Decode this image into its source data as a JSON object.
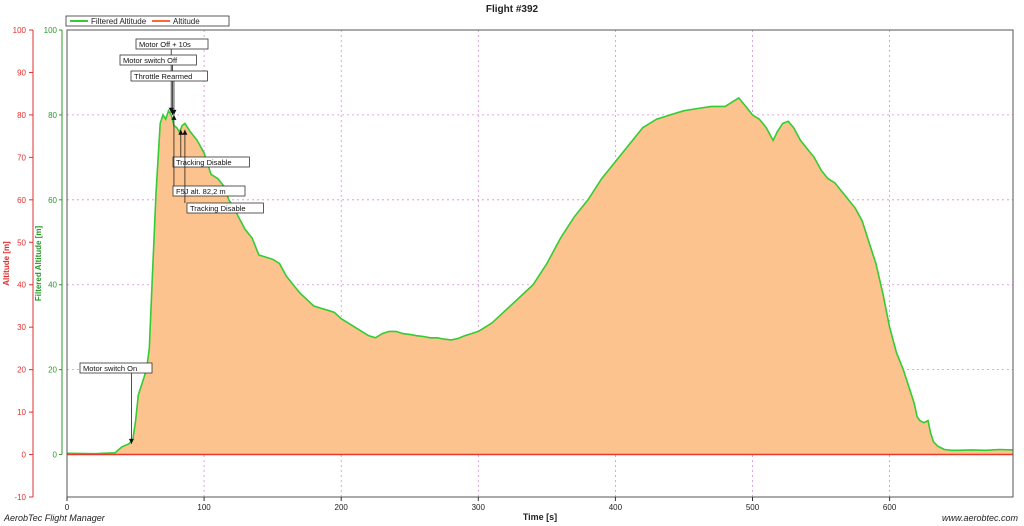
{
  "footer": {
    "left": "AerobTec Flight Manager",
    "right": "www.aerobtec.com"
  },
  "chart_data": {
    "type": "area",
    "title": "Flight #392",
    "xlabel": "Time [s]",
    "ylabel_left": "Altitude [m]",
    "ylabel_right": "Filtered Altitude [m]",
    "xlim": [
      0,
      690
    ],
    "ylim": [
      -10,
      100
    ],
    "xticks": [
      0,
      100,
      200,
      300,
      400,
      500,
      600
    ],
    "yticks_outer": [
      -10,
      0,
      10,
      20,
      30,
      40,
      50,
      60,
      70,
      80,
      90,
      100
    ],
    "yticks_inner": [
      0,
      20,
      40,
      60,
      80,
      100
    ],
    "grid": true,
    "legend_position": "top-left",
    "colors": {
      "filtered": "#33cc33",
      "altitude": "#ff6633",
      "fill": "#fcc38e",
      "outer_axis": "#e03030",
      "inner_axis": "#2a9a2a",
      "grid": "#d58fd5"
    },
    "series": [
      {
        "name": "Filtered Altitude",
        "x": [
          0,
          20,
          35,
          40,
          45,
          48,
          50,
          52,
          55,
          58,
          60,
          62,
          65,
          68,
          70,
          72,
          74,
          76,
          78,
          80,
          82,
          84,
          86,
          88,
          90,
          95,
          100,
          105,
          110,
          115,
          118,
          122,
          125,
          130,
          135,
          140,
          145,
          150,
          155,
          160,
          165,
          170,
          175,
          180,
          185,
          190,
          195,
          200,
          205,
          210,
          215,
          220,
          225,
          230,
          235,
          240,
          245,
          250,
          255,
          260,
          265,
          270,
          275,
          280,
          285,
          290,
          295,
          300,
          305,
          310,
          320,
          330,
          340,
          350,
          360,
          370,
          380,
          390,
          400,
          410,
          420,
          430,
          440,
          450,
          460,
          470,
          480,
          485,
          490,
          495,
          500,
          505,
          510,
          515,
          518,
          522,
          526,
          530,
          535,
          540,
          545,
          550,
          555,
          560,
          565,
          570,
          575,
          580,
          585,
          590,
          595,
          600,
          605,
          610,
          615,
          618,
          620,
          622,
          625,
          628,
          630,
          632,
          635,
          640,
          645,
          650,
          660,
          670,
          680,
          690
        ],
        "y": [
          0.3,
          0.2,
          0.4,
          1.8,
          2.5,
          3.5,
          8,
          14,
          17,
          20,
          25,
          40,
          62,
          78,
          80,
          79,
          81,
          80,
          77.5,
          77,
          76,
          77.5,
          78,
          77,
          76,
          74,
          71,
          66,
          65,
          63,
          60,
          58,
          56,
          53,
          51,
          47,
          46.5,
          46,
          45,
          42,
          40,
          38,
          36.5,
          35,
          34.5,
          34,
          33.5,
          32,
          31,
          30,
          29,
          28,
          27.5,
          28.5,
          29,
          29,
          28.5,
          28.3,
          28,
          27.8,
          27.5,
          27.5,
          27.2,
          27,
          27.3,
          28,
          28.5,
          29,
          30,
          31,
          34,
          37,
          40,
          45,
          51,
          56,
          60,
          65,
          69,
          73,
          77,
          79,
          80,
          81,
          81.5,
          82,
          82,
          83,
          84,
          82,
          80,
          79,
          77,
          74,
          76,
          78,
          78.5,
          77,
          74,
          72,
          70,
          67,
          65,
          64,
          62,
          60,
          58,
          55,
          50,
          45,
          38,
          30,
          24,
          20,
          15,
          12,
          9,
          8,
          7.5,
          8,
          5,
          3,
          2,
          1.2,
          1.0,
          1.0,
          1.1,
          1.0,
          1.2,
          1.1
        ]
      },
      {
        "name": "Altitude",
        "x": [
          0,
          690
        ],
        "y": [
          0,
          0
        ]
      }
    ],
    "annotations": [
      {
        "text": "Motor switch On",
        "x": 47,
        "y": 2.5
      },
      {
        "text": "Motor Off + 10s",
        "x": 76,
        "y": 80.5
      },
      {
        "text": "Motor switch Off",
        "x": 77,
        "y": 80
      },
      {
        "text": "Throttle Rearmed",
        "x": 78,
        "y": 80
      },
      {
        "text": "Tracking Disable",
        "x": 83,
        "y": 76.5
      },
      {
        "text": "F5J alt. 82,2 m",
        "x": 78,
        "y": 80
      },
      {
        "text": "Tracking Disable",
        "x": 86,
        "y": 76.5
      }
    ]
  }
}
